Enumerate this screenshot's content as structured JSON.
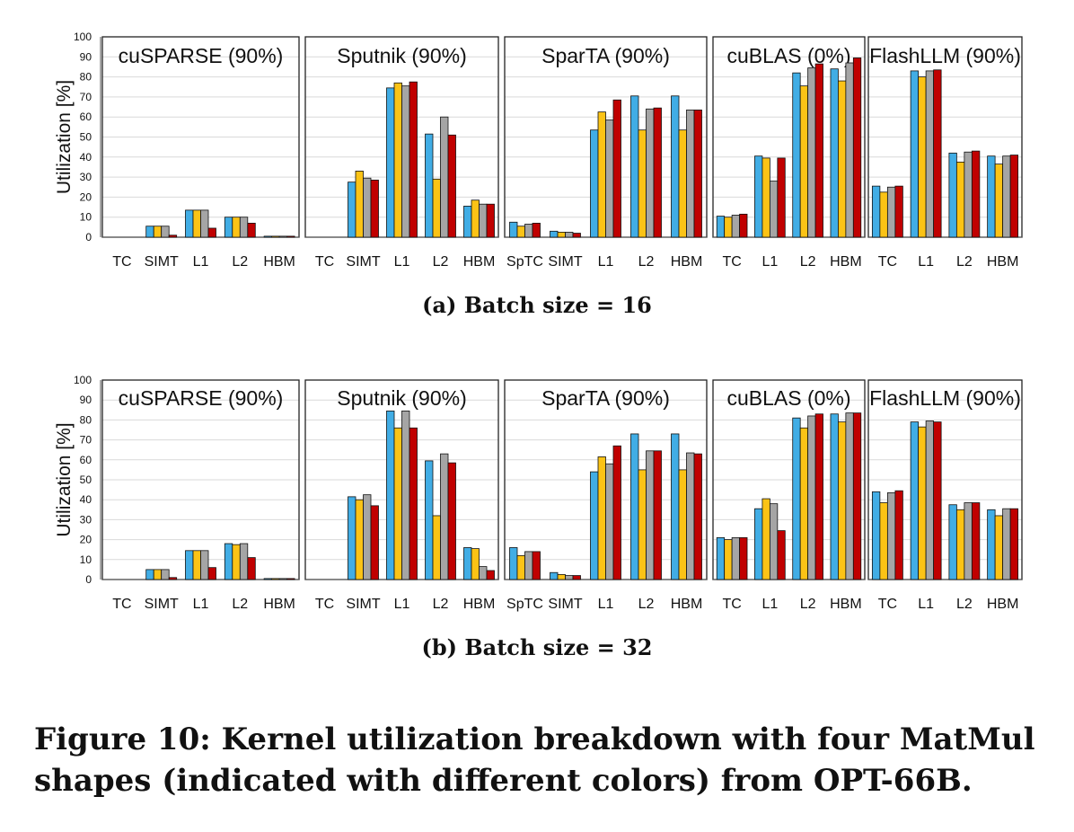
{
  "chart_data": [
    {
      "type": "bar",
      "title": "(a) Batch size = 16",
      "ylabel": "Utilization [%]",
      "ylim": [
        0,
        100
      ],
      "yticks": [
        0,
        10,
        20,
        30,
        40,
        50,
        60,
        70,
        80,
        90,
        100
      ],
      "grid": true,
      "panels": [
        {
          "title": "cuSPARSE (90%)",
          "categories": [
            "TC",
            "SIMT",
            "L1",
            "L2",
            "HBM"
          ],
          "values": [
            [
              0,
              0,
              0,
              0
            ],
            [
              5.5,
              5.5,
              5.5,
              1
            ],
            [
              13.5,
              13.5,
              13.5,
              4.5
            ],
            [
              10,
              10,
              10,
              7
            ],
            [
              0.5,
              0.5,
              0.5,
              0.5
            ]
          ]
        },
        {
          "title": "Sputnik (90%)",
          "categories": [
            "TC",
            "SIMT",
            "L1",
            "L2",
            "HBM"
          ],
          "values": [
            [
              0,
              0,
              0,
              0
            ],
            [
              27.5,
              33,
              29.5,
              28.5
            ],
            [
              74.5,
              77,
              75.5,
              77.5
            ],
            [
              51.5,
              29,
              60,
              51
            ],
            [
              15.5,
              18.5,
              16.5,
              16.5
            ]
          ]
        },
        {
          "title": "SparTA (90%)",
          "categories": [
            "SpTC",
            "SIMT",
            "L1",
            "L2",
            "HBM"
          ],
          "values": [
            [
              7.5,
              5.5,
              6.5,
              7
            ],
            [
              3,
              2.5,
              2.5,
              2
            ],
            [
              53.5,
              62.5,
              58.5,
              68.5
            ],
            [
              70.5,
              53.5,
              64,
              64.5
            ],
            [
              70.5,
              53.5,
              63.5,
              63.5
            ]
          ]
        },
        {
          "title": "cuBLAS (0%)",
          "categories": [
            "TC",
            "L1",
            "L2",
            "HBM"
          ],
          "values": [
            [
              10.5,
              10,
              11,
              11.5
            ],
            [
              40.5,
              39.5,
              28,
              39.5
            ],
            [
              82,
              75.5,
              84.5,
              86.5
            ],
            [
              84,
              78,
              87,
              89.5
            ]
          ]
        },
        {
          "title": "FlashLLM (90%)",
          "categories": [
            "TC",
            "L1",
            "L2",
            "HBM"
          ],
          "values": [
            [
              25.5,
              22.5,
              25,
              25.5
            ],
            [
              83,
              80,
              83,
              83.5
            ],
            [
              42,
              37.5,
              42.5,
              43
            ],
            [
              40.5,
              36.5,
              40.5,
              41
            ]
          ]
        }
      ]
    },
    {
      "type": "bar",
      "title": "(b) Batch size = 32",
      "ylabel": "Utilization [%]",
      "ylim": [
        0,
        100
      ],
      "yticks": [
        0,
        10,
        20,
        30,
        40,
        50,
        60,
        70,
        80,
        90,
        100
      ],
      "grid": true,
      "panels": [
        {
          "title": "cuSPARSE (90%)",
          "categories": [
            "TC",
            "SIMT",
            "L1",
            "L2",
            "HBM"
          ],
          "values": [
            [
              0,
              0,
              0,
              0
            ],
            [
              5,
              5,
              5,
              1
            ],
            [
              14.5,
              14.5,
              14.5,
              6
            ],
            [
              18,
              17.5,
              18,
              11
            ],
            [
              0.5,
              0.5,
              0.5,
              0.5
            ]
          ]
        },
        {
          "title": "Sputnik (90%)",
          "categories": [
            "TC",
            "SIMT",
            "L1",
            "L2",
            "HBM"
          ],
          "values": [
            [
              0,
              0,
              0,
              0
            ],
            [
              41.5,
              40,
              42.5,
              37
            ],
            [
              84.5,
              76,
              84.5,
              76
            ],
            [
              59.5,
              32,
              63,
              58.5
            ],
            [
              16,
              15.5,
              6.5,
              4.5
            ]
          ]
        },
        {
          "title": "SparTA (90%)",
          "categories": [
            "SpTC",
            "SIMT",
            "L1",
            "L2",
            "HBM"
          ],
          "values": [
            [
              16,
              12,
              14,
              14
            ],
            [
              3.5,
              2.5,
              2,
              2
            ],
            [
              54,
              61.5,
              58,
              67
            ],
            [
              73,
              55,
              64.5,
              64.5
            ],
            [
              73,
              55,
              63.5,
              63
            ]
          ]
        },
        {
          "title": "cuBLAS (0%)",
          "categories": [
            "TC",
            "L1",
            "L2",
            "HBM"
          ],
          "values": [
            [
              21,
              20,
              21,
              21
            ],
            [
              35.5,
              40.5,
              38,
              24.5
            ],
            [
              81,
              76,
              82,
              83
            ],
            [
              83,
              79,
              83.5,
              83.5
            ]
          ]
        },
        {
          "title": "FlashLLM (90%)",
          "categories": [
            "TC",
            "L1",
            "L2",
            "HBM"
          ],
          "values": [
            [
              44,
              38.5,
              43.5,
              44.5
            ],
            [
              79,
              76.5,
              79.5,
              79
            ],
            [
              37.5,
              35,
              38.5,
              38.5
            ],
            [
              35,
              32,
              35.5,
              35.5
            ]
          ]
        }
      ]
    }
  ],
  "series_colors": [
    "#41ade5",
    "#fbc316",
    "#a5a5a5",
    "#c00000"
  ],
  "figure_caption": "Figure 10: Kernel utilization breakdown with four MatMul shapes (indicated with different colors) from OPT-66B."
}
